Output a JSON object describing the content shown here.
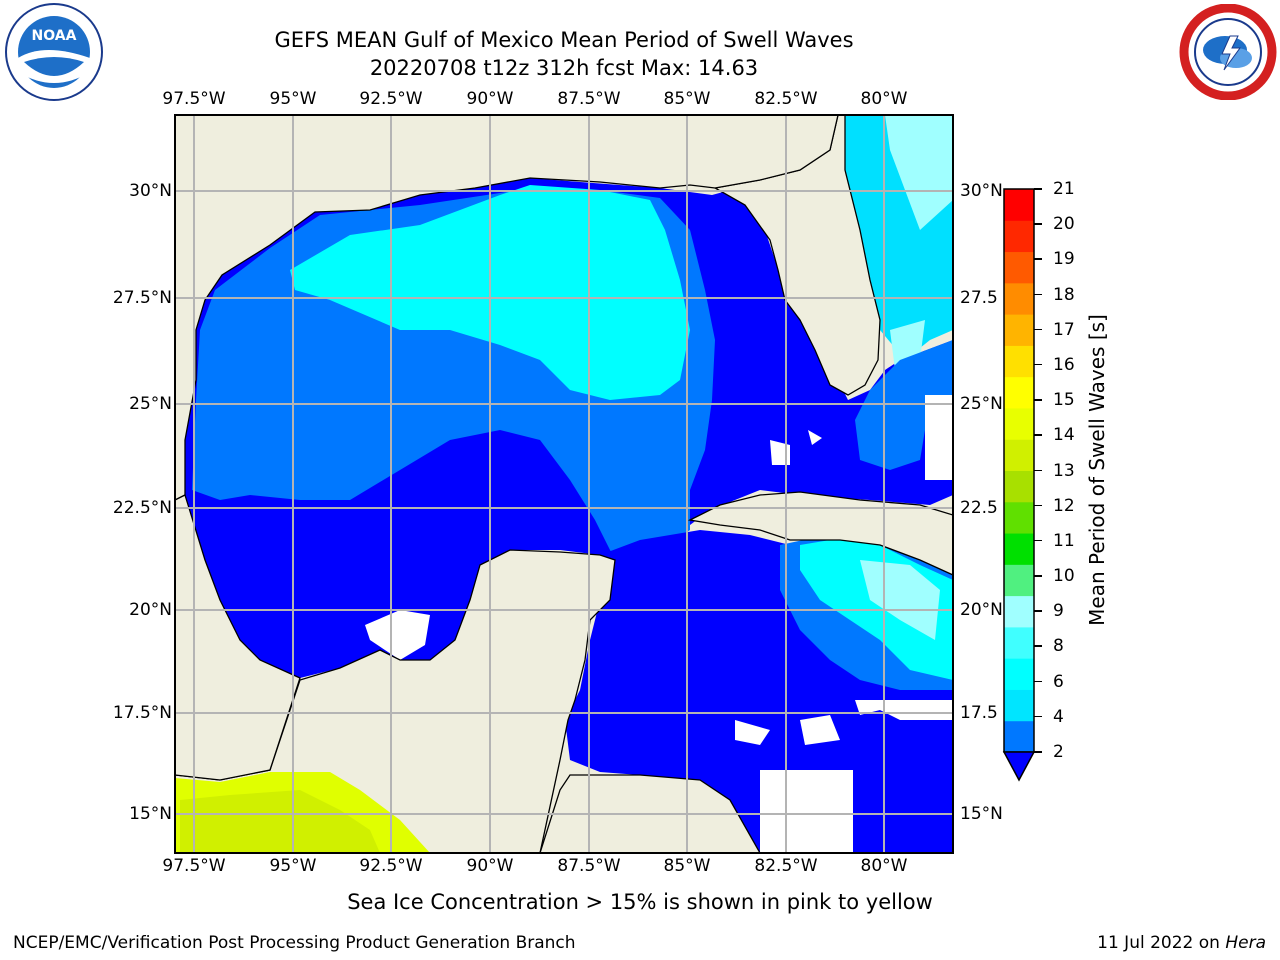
{
  "title": {
    "line1": "GEFS MEAN Gulf of Mexico Mean Period of Swell Waves",
    "line2": "20220708 t12z 312h fcst   Max: 14.63"
  },
  "map": {
    "lon_labels": [
      "97.5°W",
      "95°W",
      "92.5°W",
      "90°W",
      "87.5°W",
      "85°W",
      "82.5°W",
      "80°W"
    ],
    "lat_labels_left": [
      "30°N",
      "27.5°N",
      "25°N",
      "22.5°N",
      "20°N",
      "17.5°N",
      "15°N"
    ],
    "lat_labels_right": [
      "30°N",
      "27.5",
      "25°N",
      "22.5",
      "20°N",
      "17.5",
      "15°N"
    ],
    "colors": {
      "land": "#efeede",
      "grid": "#b4b4b4",
      "deep_blue": "#0000ff",
      "mid_blue": "#0078ff",
      "cyan": "#00ffff",
      "light_cyan": "#a0ffff",
      "ice_yellow": "#e0ff00"
    }
  },
  "colorbar": {
    "label": "Mean Period of Swell Waves [s]",
    "ticks": [
      "21",
      "20",
      "19",
      "18",
      "17",
      "16",
      "15",
      "14",
      "13",
      "12",
      "11",
      "10",
      "9",
      "8",
      "6",
      "4",
      "2"
    ],
    "colors": [
      "#0078ff",
      "#00e5ff",
      "#00ffff",
      "#40ffff",
      "#a0ffff",
      "#50f080",
      "#00e000",
      "#60e000",
      "#a8e000",
      "#d0f000",
      "#e8ff00",
      "#ffff00",
      "#ffe000",
      "#ffb400",
      "#ff8c00",
      "#ff5a00",
      "#ff2800",
      "#ff0000"
    ]
  },
  "note": "Sea Ice Concentration > 15% is shown in pink to yellow",
  "footer": {
    "left": "NCEP/EMC/Verification Post Processing Product Generation Branch",
    "date": "11 Jul 2022 on",
    "machine": "Hera"
  },
  "logos": {
    "left": "NOAA",
    "right": "NATIONAL WEATHER SERVICE"
  }
}
